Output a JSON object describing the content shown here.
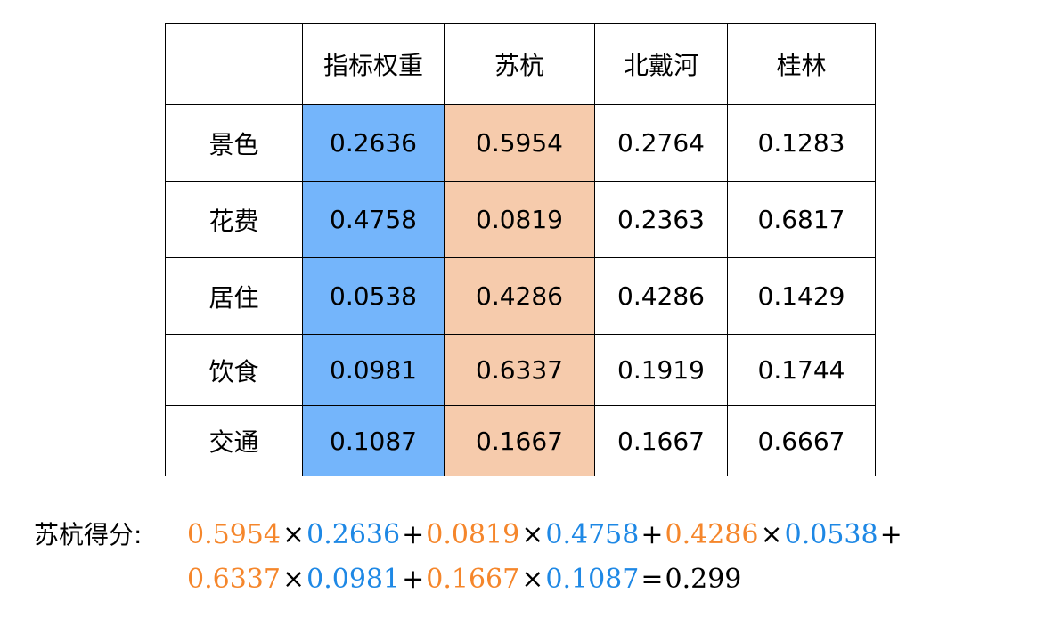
{
  "table": {
    "header": [
      "",
      "指标权重",
      "苏杭",
      "北戴河",
      "桂林"
    ],
    "rows": [
      {
        "label": "景色",
        "weight": "0.2636",
        "suhang": "0.5954",
        "beidaihe": "0.2764",
        "guilin": "0.1283"
      },
      {
        "label": "花费",
        "weight": "0.4758",
        "suhang": "0.0819",
        "beidaihe": "0.2363",
        "guilin": "0.6817"
      },
      {
        "label": "居住",
        "weight": "0.0538",
        "suhang": "0.4286",
        "beidaihe": "0.4286",
        "guilin": "0.1429"
      },
      {
        "label": "饮食",
        "weight": "0.0981",
        "suhang": "0.6337",
        "beidaihe": "0.1919",
        "guilin": "0.1744"
      },
      {
        "label": "交通",
        "weight": "0.1087",
        "suhang": "0.1667",
        "beidaihe": "0.1667",
        "guilin": "0.6667"
      }
    ],
    "colors": {
      "weight_column": "#74b5fb",
      "suhang_column": "#f6cbac"
    }
  },
  "formula": {
    "label": "苏杭得分:",
    "times": "×",
    "plus": "+",
    "equals": "=",
    "line1": [
      {
        "score": "0.5954",
        "weight": "0.2636"
      },
      {
        "score": "0.0819",
        "weight": "0.4758"
      },
      {
        "score": "0.4286",
        "weight": "0.0538"
      }
    ],
    "line2": [
      {
        "score": "0.6337",
        "weight": "0.0981"
      },
      {
        "score": "0.1667",
        "weight": "0.1087"
      }
    ],
    "result": "0.299",
    "colors": {
      "score": "#f5862b",
      "weight": "#1e88e5"
    }
  }
}
